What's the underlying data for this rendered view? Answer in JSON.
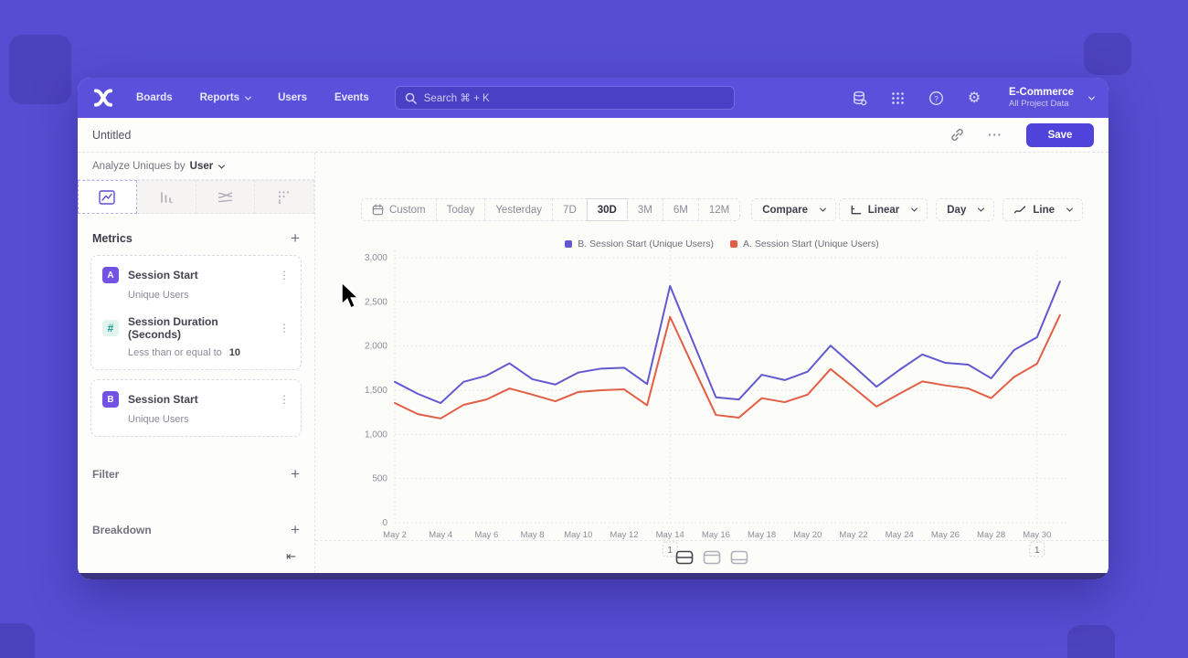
{
  "nav": {
    "links": [
      "Boards",
      "Reports",
      "Users",
      "Events"
    ],
    "reports_has_chevron": true,
    "search_placeholder": "Search  ⌘ + K",
    "project_name": "E-Commerce",
    "project_subtitle": "All Project Data",
    "icons": [
      "data-management-icon",
      "apps-grid-icon",
      "help-icon",
      "settings-gear-icon"
    ]
  },
  "header": {
    "title": "Untitled",
    "ellipsis": "···",
    "save_label": "Save"
  },
  "sidebar": {
    "analyze_label": "Analyze Uniques by",
    "analyze_value": "User",
    "tabs": [
      {
        "icon": "line-chart-icon",
        "selected": true
      },
      {
        "icon": "bar-chart-icon",
        "selected": false
      },
      {
        "icon": "flow-chart-icon",
        "selected": false
      },
      {
        "icon": "retention-dots-icon",
        "selected": false
      }
    ],
    "metrics_title": "Metrics",
    "metric_groups": [
      {
        "rows": [
          {
            "badge": "A",
            "badge_type": "letter",
            "title": "Session Start",
            "subtitle": "Unique Users",
            "value": ""
          },
          {
            "badge": "#",
            "badge_type": "operator",
            "title": "Session Duration (Seconds)",
            "subtitle": "Less than or equal to",
            "value": "10"
          }
        ]
      },
      {
        "rows": [
          {
            "badge": "B",
            "badge_type": "letter",
            "title": "Session Start",
            "subtitle": "Unique Users",
            "value": ""
          }
        ]
      }
    ],
    "sections": [
      {
        "label": "Filter"
      },
      {
        "label": "Breakdown"
      }
    ],
    "collapse_glyph": "⇤"
  },
  "toolbar": {
    "ranges": [
      "Custom",
      "Today",
      "Yesterday",
      "7D",
      "30D",
      "3M",
      "6M",
      "12M"
    ],
    "selected_range": "30D",
    "compare_label": "Compare",
    "scale_label": "Linear",
    "interval_label": "Day",
    "chart_type_label": "Line"
  },
  "chart_data": {
    "type": "line",
    "x": [
      "May 2",
      "May 3",
      "May 4",
      "May 5",
      "May 6",
      "May 7",
      "May 8",
      "May 9",
      "May 10",
      "May 11",
      "May 12",
      "May 13",
      "May 14",
      "May 15",
      "May 16",
      "May 17",
      "May 18",
      "May 19",
      "May 20",
      "May 21",
      "May 22",
      "May 23",
      "May 24",
      "May 25",
      "May 26",
      "May 27",
      "May 28",
      "May 29",
      "May 30",
      "May 31"
    ],
    "x_tick_labels": [
      "May 2",
      "May 4",
      "May 6",
      "May 8",
      "May 10",
      "May 12",
      "May 14",
      "May 16",
      "May 18",
      "May 20",
      "May 22",
      "May 24",
      "May 26",
      "May 28",
      "May 30"
    ],
    "series": [
      {
        "name": "B. Session Start (Unique Users)",
        "color": "#6259d0",
        "values": [
          1595,
          1460,
          1355,
          1595,
          1665,
          1805,
          1625,
          1565,
          1700,
          1745,
          1755,
          1570,
          2680,
          2050,
          1420,
          1395,
          1675,
          1615,
          1710,
          2005,
          1775,
          1540,
          1730,
          1905,
          1810,
          1790,
          1635,
          1955,
          2100,
          2730
        ]
      },
      {
        "name": "A. Session Start (Unique Users)",
        "color": "#e25e44",
        "values": [
          1355,
          1230,
          1180,
          1335,
          1395,
          1520,
          1450,
          1375,
          1480,
          1500,
          1510,
          1330,
          2330,
          1770,
          1220,
          1190,
          1410,
          1365,
          1450,
          1740,
          1530,
          1315,
          1460,
          1600,
          1555,
          1520,
          1410,
          1650,
          1800,
          2350
        ]
      }
    ],
    "ylim": [
      0,
      3000
    ],
    "yticks": [
      0,
      500,
      1000,
      1500,
      2000,
      2500,
      3000
    ],
    "grid": "dotted horizontal; vertical dotted guides at first point and annotated dates",
    "legend_position": "top-center",
    "annotations": [
      {
        "x": "May 14",
        "label": "1"
      },
      {
        "x": "May 30",
        "label": "1"
      }
    ]
  },
  "footer": {
    "layout_buttons": [
      {
        "icon": "split-middle-icon",
        "selected": true
      },
      {
        "icon": "split-top-icon",
        "selected": false
      },
      {
        "icon": "split-bottom-icon",
        "selected": false
      }
    ]
  },
  "colors": {
    "backdrop": "#564dd2",
    "nav": "#5a50dc",
    "accent": "#4f43dc",
    "series_b": "#6259d0",
    "series_a": "#e25e44",
    "badge_purple": "#7251e3",
    "operator_teal": "#12a084"
  }
}
